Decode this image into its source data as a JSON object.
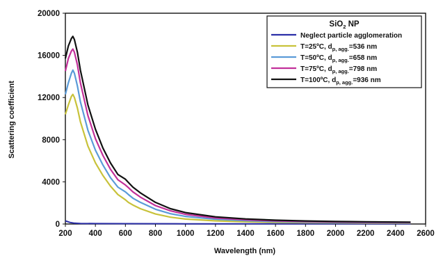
{
  "chart_data": {
    "type": "line",
    "title": "",
    "xlabel": "Wavelength (nm)",
    "ylabel": "Scattering coefficient",
    "xlim": [
      200,
      2600
    ],
    "ylim": [
      0,
      20000
    ],
    "x_ticks": [
      200,
      400,
      600,
      800,
      1000,
      1200,
      1400,
      1600,
      1800,
      2000,
      2200,
      2400,
      2600
    ],
    "y_ticks": [
      0,
      4000,
      8000,
      12000,
      16000,
      20000
    ],
    "grid": false,
    "legend": {
      "placement": "top-right",
      "title_main": "SiO",
      "title_sub": "2",
      "title_tail": " NP"
    },
    "series": [
      {
        "name": "Neglect particle agglomeration",
        "label_parts": [
          "Neglect particle agglomeration",
          "",
          ""
        ],
        "color": "#2b2fa8",
        "x": [
          200,
          230,
          260,
          300,
          400,
          600,
          1000,
          1600,
          2500
        ],
        "values": [
          300,
          150,
          80,
          50,
          40,
          30,
          20,
          20,
          20
        ]
      },
      {
        "name": "T=25ºC, dp, agg.=536 nm",
        "label_parts": [
          "T=25ºC, d",
          "p, agg.",
          "=536 nm"
        ],
        "color": "#c8c23a",
        "x": [
          200,
          220,
          240,
          250,
          260,
          280,
          300,
          350,
          400,
          450,
          500,
          550,
          600,
          620,
          650,
          700,
          800,
          900,
          1000,
          1200,
          1400,
          1600,
          1800,
          2000,
          2200,
          2500
        ],
        "values": [
          10400,
          11300,
          12100,
          12300,
          12000,
          11000,
          9700,
          7400,
          5800,
          4600,
          3600,
          2800,
          2300,
          2050,
          1800,
          1450,
          950,
          650,
          470,
          300,
          210,
          160,
          130,
          110,
          100,
          90
        ]
      },
      {
        "name": "T=50ºC, dp, agg.=658 nm",
        "label_parts": [
          "T=50ºC, d",
          "p, agg.",
          "=658 nm"
        ],
        "color": "#5a9bd8",
        "x": [
          200,
          220,
          240,
          250,
          260,
          280,
          300,
          350,
          400,
          450,
          500,
          550,
          600,
          620,
          650,
          700,
          800,
          900,
          1000,
          1200,
          1400,
          1600,
          1800,
          2000,
          2200,
          2500
        ],
        "values": [
          12300,
          13400,
          14300,
          14600,
          14300,
          13100,
          11600,
          8900,
          7000,
          5600,
          4400,
          3500,
          3050,
          2800,
          2450,
          2050,
          1400,
          980,
          720,
          450,
          320,
          240,
          190,
          160,
          140,
          120
        ]
      },
      {
        "name": "T=75ºC, dp, agg.=798 nm",
        "label_parts": [
          "T=75ºC, d",
          "p, agg.",
          "=798 nm"
        ],
        "color": "#c2309a",
        "x": [
          200,
          220,
          240,
          250,
          260,
          280,
          300,
          350,
          400,
          450,
          500,
          550,
          600,
          620,
          650,
          700,
          800,
          900,
          1000,
          1200,
          1400,
          1600,
          1800,
          2000,
          2200,
          2500
        ],
        "values": [
          14500,
          15700,
          16400,
          16600,
          16300,
          15100,
          13400,
          10300,
          8100,
          6500,
          5200,
          4200,
          3700,
          3450,
          3050,
          2550,
          1750,
          1250,
          920,
          570,
          400,
          300,
          240,
          200,
          170,
          150
        ]
      },
      {
        "name": "T=100ºC, dp, agg.=936 nm",
        "label_parts": [
          "T=100ºC, d",
          "p, agg.",
          "=936 nm"
        ],
        "color": "#111111",
        "x": [
          200,
          220,
          240,
          250,
          260,
          280,
          300,
          350,
          400,
          450,
          500,
          550,
          600,
          620,
          650,
          700,
          800,
          900,
          1000,
          1200,
          1400,
          1600,
          1800,
          2000,
          2200,
          2500
        ],
        "values": [
          15700,
          16900,
          17600,
          17800,
          17500,
          16300,
          14600,
          11300,
          9000,
          7200,
          5800,
          4700,
          4250,
          3950,
          3500,
          2950,
          2050,
          1450,
          1080,
          680,
          480,
          360,
          290,
          240,
          210,
          180
        ]
      }
    ]
  }
}
